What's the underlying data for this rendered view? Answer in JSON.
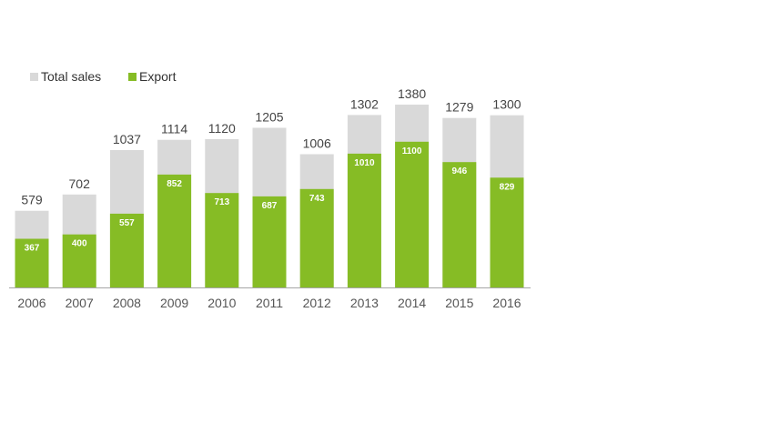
{
  "chart_data": {
    "type": "bar",
    "stacked": "overlay",
    "categories": [
      "2006",
      "2007",
      "2008",
      "2009",
      "2010",
      "2011",
      "2012",
      "2013",
      "2014",
      "2015",
      "2016"
    ],
    "series": [
      {
        "name": "Total sales",
        "color": "#d9d9d9",
        "values": [
          579,
          702,
          1037,
          1114,
          1120,
          1205,
          1006,
          1302,
          1380,
          1279,
          1300
        ]
      },
      {
        "name": "Export",
        "color": "#86bc25",
        "values": [
          367,
          400,
          557,
          852,
          713,
          687,
          743,
          1010,
          1100,
          946,
          829
        ]
      }
    ],
    "title": "",
    "xlabel": "",
    "ylabel": "",
    "ylim": [
      0,
      1380
    ],
    "grid": false,
    "legend": "top-left"
  }
}
